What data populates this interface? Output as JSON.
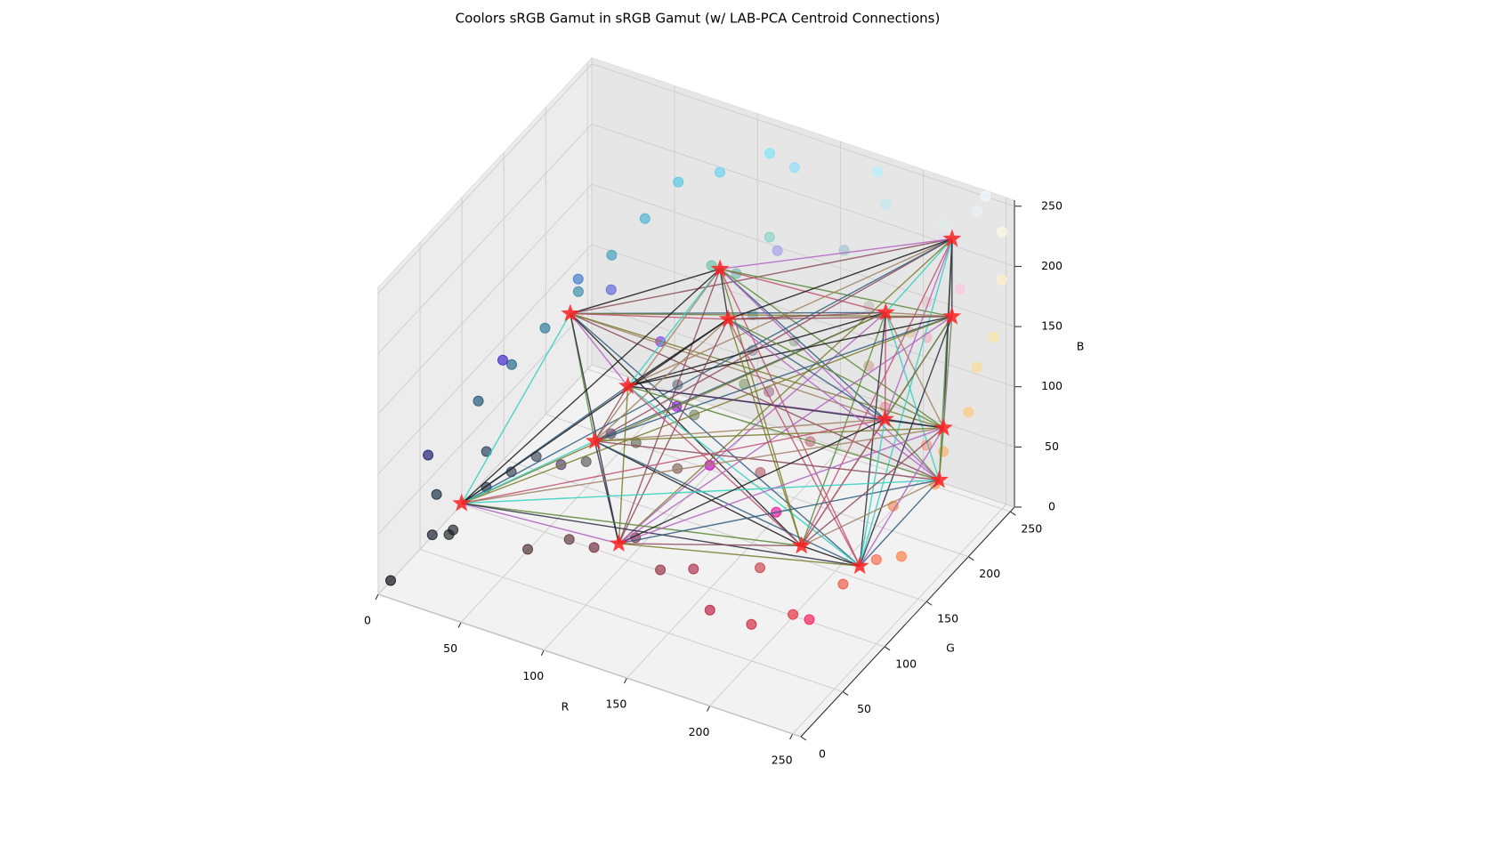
{
  "chart_data": {
    "type": "scatter3d",
    "title": "Coolors sRGB Gamut in sRGB Gamut (w/ LAB-PCA Centroid Connections)",
    "xlabel": "R",
    "ylabel": "G",
    "zlabel": "B",
    "xlim": [
      0,
      255
    ],
    "ylim": [
      0,
      255
    ],
    "zlim": [
      0,
      255
    ],
    "xticks": [
      0,
      50,
      100,
      150,
      200,
      250
    ],
    "yticks": [
      0,
      50,
      100,
      150,
      200,
      250
    ],
    "zticks": [
      0,
      50,
      100,
      150,
      200,
      250
    ],
    "grid": true,
    "points": {
      "r": [
        5,
        20,
        30,
        15,
        40,
        25,
        50,
        60,
        35,
        20,
        30,
        40,
        50,
        60,
        70,
        80,
        100,
        120,
        60,
        90,
        60,
        20,
        80,
        100,
        120,
        140,
        160,
        140,
        120,
        100,
        130,
        170,
        180,
        190,
        160,
        140,
        170,
        200,
        230,
        70,
        90,
        110,
        130,
        150,
        170,
        190,
        210,
        230,
        200,
        250,
        240,
        250,
        255,
        240,
        255,
        250,
        255,
        250,
        255,
        230,
        240,
        250,
        230,
        240,
        250,
        220,
        200,
        230,
        255,
        200,
        180,
        170,
        150,
        120,
        100,
        80,
        130,
        210,
        220,
        255,
        240,
        180,
        140
      ],
      "g": [
        5,
        25,
        30,
        40,
        50,
        35,
        60,
        70,
        60,
        80,
        100,
        120,
        140,
        160,
        180,
        200,
        210,
        230,
        120,
        100,
        30,
        20,
        90,
        110,
        140,
        160,
        180,
        170,
        190,
        200,
        210,
        220,
        200,
        230,
        160,
        60,
        20,
        0,
        20,
        40,
        50,
        40,
        50,
        40,
        40,
        20,
        30,
        40,
        60,
        20,
        80,
        100,
        120,
        140,
        160,
        180,
        200,
        220,
        230,
        200,
        180,
        200,
        220,
        240,
        250,
        240,
        190,
        150,
        150,
        120,
        100,
        130,
        150,
        120,
        80,
        60,
        100,
        170,
        200,
        240,
        250,
        240,
        220
      ],
      "b": [
        10,
        40,
        45,
        60,
        70,
        35,
        80,
        90,
        90,
        110,
        130,
        150,
        170,
        190,
        210,
        230,
        240,
        250,
        200,
        220,
        200,
        110,
        80,
        90,
        100,
        120,
        150,
        170,
        180,
        170,
        200,
        200,
        220,
        240,
        240,
        230,
        220,
        200,
        160,
        40,
        50,
        60,
        70,
        60,
        70,
        60,
        50,
        60,
        70,
        80,
        60,
        70,
        60,
        80,
        90,
        100,
        120,
        140,
        160,
        200,
        190,
        220,
        240,
        250,
        230,
        230,
        190,
        150,
        130,
        130,
        110,
        150,
        160,
        140,
        120,
        100,
        90,
        160,
        170,
        200,
        255,
        255,
        255
      ]
    },
    "centroids": {
      "color": "#ff2020",
      "r": [
        30,
        90,
        230,
        195,
        240,
        90,
        110,
        70,
        20,
        130,
        230,
        220,
        250,
        240,
        240
      ],
      "g": [
        170,
        230,
        230,
        220,
        210,
        120,
        200,
        120,
        60,
        30,
        150,
        70,
        175,
        100,
        200
      ],
      "b": [
        120,
        140,
        230,
        160,
        185,
        125,
        130,
        70,
        40,
        80,
        140,
        90,
        80,
        60,
        100
      ]
    },
    "connection_colors": [
      "#1a1a1a",
      "#8b4a5a",
      "#2e5a7a",
      "#7a7a2a",
      "#b060c0",
      "#c05070",
      "#5a8a3a",
      "#30d0c0",
      "#2a2a40",
      "#a08060"
    ]
  }
}
